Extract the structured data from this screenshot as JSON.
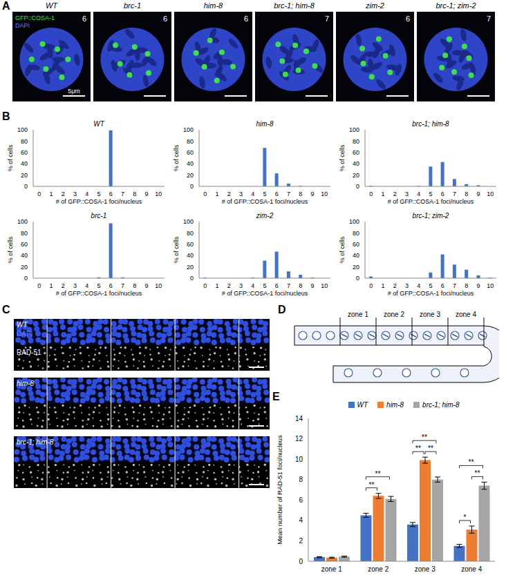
{
  "panel_letters": [
    "A",
    "B",
    "C",
    "D",
    "E"
  ],
  "panel_A": {
    "legend": [
      {
        "text": "GFP::COSA-1",
        "color": "#3ee04a"
      },
      {
        "text": "DAPI",
        "color": "#5a7bff"
      }
    ],
    "scale_bar": "5μm",
    "images": [
      {
        "label": "WT",
        "foci": 6
      },
      {
        "label": "brc-1",
        "foci": 6
      },
      {
        "label": "him-8",
        "foci": 6
      },
      {
        "label": "brc-1; him-8",
        "foci": 7
      },
      {
        "label": "zim-2",
        "foci": 6
      },
      {
        "label": "brc-1; zim-2",
        "foci": 7
      }
    ]
  },
  "chart_data": [
    {
      "type": "bar",
      "title": "WT",
      "categories": [
        "0",
        "1",
        "2",
        "3",
        "4",
        "5",
        "6",
        "7",
        "8",
        "9",
        "10"
      ],
      "values": [
        0,
        0,
        0,
        0,
        0,
        0,
        99,
        0,
        0,
        0,
        0
      ],
      "color": "#4472c4",
      "ylim": [
        0,
        100
      ],
      "yticks": [
        0,
        20,
        40,
        60,
        80,
        100
      ],
      "x_label": "# of GFP::COSA-1 foci/nucleus",
      "y_label": "% of cells"
    },
    {
      "type": "bar",
      "title": "him-8",
      "categories": [
        "0",
        "1",
        "2",
        "3",
        "4",
        "5",
        "6",
        "7",
        "8",
        "9",
        "10"
      ],
      "values": [
        0,
        0,
        0,
        0,
        0,
        68,
        23,
        5,
        1,
        0,
        0
      ],
      "color": "#4472c4",
      "ylim": [
        0,
        100
      ],
      "yticks": [
        0,
        20,
        40,
        60,
        80,
        100
      ],
      "x_label": "# of GFP::COSA-1 foci/nucleus",
      "y_label": "% of cells"
    },
    {
      "type": "bar",
      "title": "brc-1; him-8",
      "categories": [
        "0",
        "1",
        "2",
        "3",
        "4",
        "5",
        "6",
        "7",
        "8",
        "9",
        "10"
      ],
      "values": [
        1,
        0,
        0,
        0,
        1,
        35,
        43,
        13,
        4,
        2,
        0
      ],
      "color": "#4472c4",
      "ylim": [
        0,
        100
      ],
      "yticks": [
        0,
        20,
        40,
        60,
        80,
        100
      ],
      "x_label": "# of GFP::COSA-1 foci/nucleus",
      "y_label": "% of cells"
    },
    {
      "type": "bar",
      "title": "brc-1",
      "categories": [
        "0",
        "1",
        "2",
        "3",
        "4",
        "5",
        "6",
        "7",
        "8",
        "9",
        "10"
      ],
      "values": [
        0,
        0,
        0,
        0,
        0,
        1.5,
        97,
        1.5,
        0,
        0,
        0
      ],
      "color": "#4472c4",
      "ylim": [
        0,
        100
      ],
      "yticks": [
        0,
        20,
        40,
        60,
        80,
        100
      ],
      "x_label": "# of GFP::COSA-1 foci/nucleus",
      "y_label": "% of cells"
    },
    {
      "type": "bar",
      "title": "zim-2",
      "categories": [
        "0",
        "1",
        "2",
        "3",
        "4",
        "5",
        "6",
        "7",
        "8",
        "9",
        "10"
      ],
      "values": [
        1,
        0,
        0,
        0,
        1,
        31,
        47,
        12,
        6,
        1,
        0
      ],
      "color": "#4472c4",
      "ylim": [
        0,
        100
      ],
      "yticks": [
        0,
        20,
        40,
        60,
        80,
        100
      ],
      "x_label": "# of GFP::COSA-1 foci/nucleus",
      "y_label": "% of cells"
    },
    {
      "type": "bar",
      "title": "brc-1; zim-2",
      "categories": [
        "0",
        "1",
        "2",
        "3",
        "4",
        "5",
        "6",
        "7",
        "8",
        "9",
        "10"
      ],
      "values": [
        3,
        0,
        0,
        0,
        0,
        10,
        42,
        24,
        15,
        5,
        1
      ],
      "color": "#4472c4",
      "ylim": [
        0,
        100
      ],
      "yticks": [
        0,
        20,
        40,
        60,
        80,
        100
      ],
      "x_label": "# of GFP::COSA-1 foci/nucleus",
      "y_label": "% of cells"
    },
    {
      "type": "bar",
      "categories": [
        "zone 1",
        "zone 2",
        "zone 3",
        "zone 4"
      ],
      "series": [
        {
          "name": "WT",
          "color": "#4472c4",
          "values": [
            0.4,
            4.5,
            3.6,
            1.5
          ],
          "errors": [
            0.05,
            0.2,
            0.2,
            0.15
          ]
        },
        {
          "name": "him-8",
          "color": "#ed7d31",
          "values": [
            0.35,
            6.4,
            9.9,
            3.1
          ],
          "errors": [
            0.05,
            0.25,
            0.3,
            0.35
          ]
        },
        {
          "name": "brc-1; him-8",
          "color": "#a5a5a5",
          "values": [
            0.45,
            6.1,
            8.0,
            7.4
          ],
          "errors": [
            0.05,
            0.25,
            0.25,
            0.35
          ]
        }
      ],
      "ylim": [
        0,
        14
      ],
      "yticks": [
        0,
        2,
        4,
        6,
        8,
        10,
        12,
        14
      ],
      "y_label": "Mean number of RAD-51 foci/nucleus",
      "legend": "top",
      "annotations": [
        {
          "category": "zone 2",
          "from": "WT",
          "to": "him-8",
          "text": "**"
        },
        {
          "category": "zone 2",
          "from": "WT",
          "to": "brc-1; him-8",
          "text": "**"
        },
        {
          "category": "zone 3",
          "from": "WT",
          "to": "him-8",
          "text": "**"
        },
        {
          "category": "zone 3",
          "from": "him-8",
          "to": "brc-1; him-8",
          "text": "**"
        },
        {
          "category": "zone 3",
          "from": "WT",
          "to": "brc-1; him-8",
          "text": "**"
        },
        {
          "category": "zone 4",
          "from": "WT",
          "to": "him-8",
          "text": "*"
        },
        {
          "category": "zone 4",
          "from": "him-8",
          "to": "brc-1; him-8",
          "text": "**"
        },
        {
          "category": "zone 4",
          "from": "WT",
          "to": "brc-1; him-8",
          "text": "**"
        }
      ]
    }
  ],
  "panel_C": {
    "channels": [
      {
        "text": "DAPI",
        "color": "#5a7bff"
      },
      {
        "text": "RAD-51",
        "color": "#ffffff"
      }
    ],
    "rows": [
      "WT",
      "him-8",
      "brc-1; him-8"
    ]
  },
  "panel_D": {
    "zones": [
      "zone 1",
      "zone 2",
      "zone 3",
      "zone 4"
    ]
  }
}
